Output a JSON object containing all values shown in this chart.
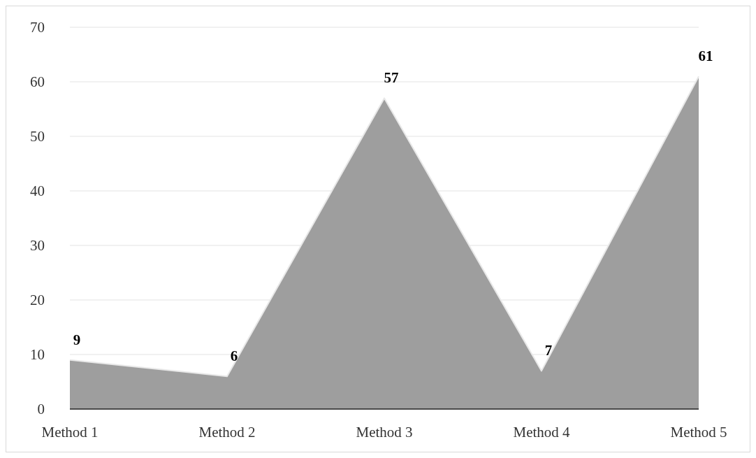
{
  "chart_data": {
    "type": "area",
    "categories": [
      "Method 1",
      "Method 2",
      "Method 3",
      "Method 4",
      "Method 5"
    ],
    "values": [
      9,
      6,
      57,
      7,
      61
    ],
    "color": "#9e9e9e",
    "ylim": [
      0,
      70
    ],
    "yticks": [
      0,
      10,
      20,
      30,
      40,
      50,
      60,
      70
    ],
    "grid": "y",
    "data_labels": true
  }
}
